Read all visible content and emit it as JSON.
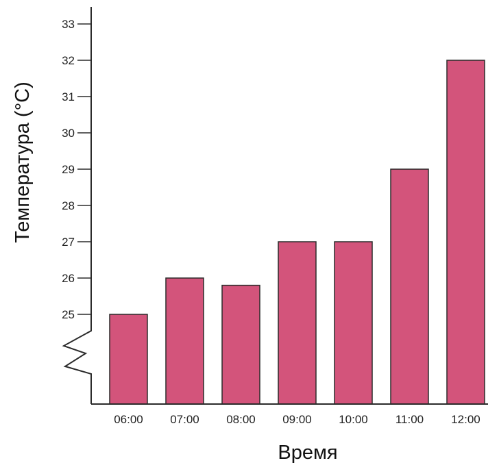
{
  "chart_data": {
    "type": "bar",
    "title": "",
    "xlabel": "Время",
    "ylabel": "Температура (°C)",
    "categories": [
      "06:00",
      "07:00",
      "08:00",
      "09:00",
      "10:00",
      "11:00",
      "12:00"
    ],
    "values": [
      25,
      26,
      25.8,
      27,
      27,
      29,
      32
    ],
    "ylim": [
      25,
      33
    ],
    "yticks": [
      "25",
      "26",
      "27",
      "28",
      "29",
      "30",
      "31",
      "32",
      "33"
    ],
    "y_axis_break": true,
    "grid": false,
    "legend": "none",
    "colors": {
      "bar": "#d3547b",
      "bar_outline": "#2b2b2b",
      "axis": "#2b2b2b"
    }
  }
}
